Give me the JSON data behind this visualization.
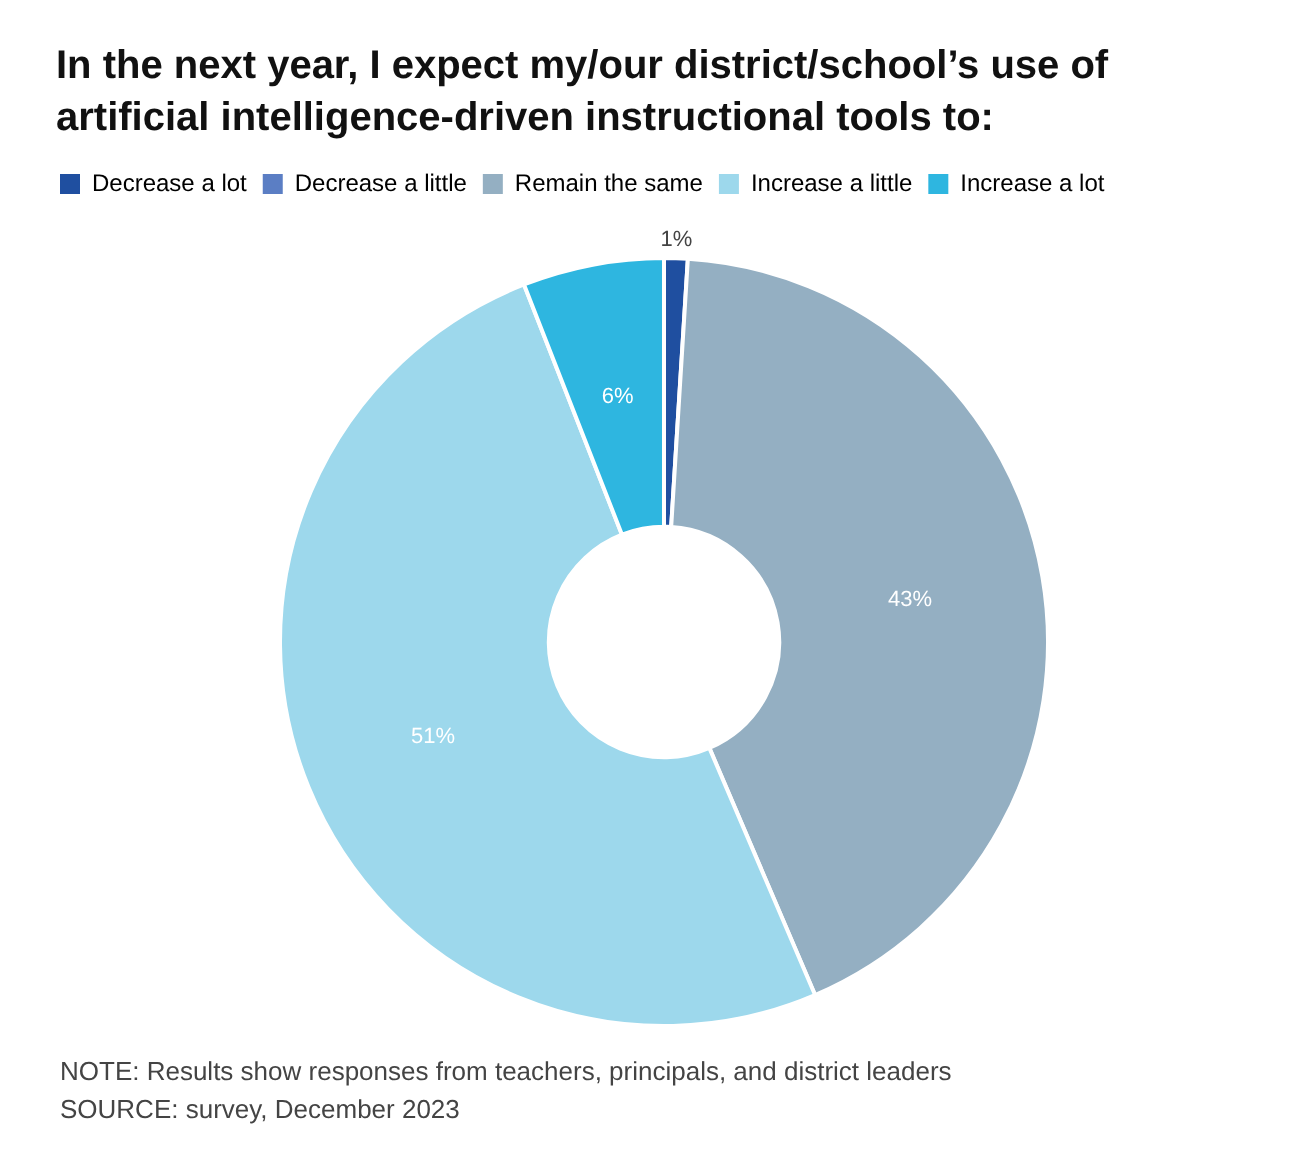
{
  "chart_data": {
    "type": "donut",
    "title": "In the next year, I expect my/our district/school’s use of artificial intelligence-driven instructional tools to:",
    "categories": [
      "Decrease a lot",
      "Decrease a little",
      "Remain the same",
      "Increase a little",
      "Increase a lot"
    ],
    "values": [
      1,
      0,
      43,
      51,
      6
    ],
    "colors": [
      "#1f4fa0",
      "#5b7ec4",
      "#94afc2",
      "#9dd8ec",
      "#2eb6e0"
    ],
    "value_labels": [
      "1%",
      null,
      "43%",
      "51%",
      "6%"
    ],
    "legend": "top left",
    "annotations": [
      "NOTE: Results show responses from teachers, principals, and district leaders",
      "SOURCE: survey, December 2023"
    ]
  }
}
